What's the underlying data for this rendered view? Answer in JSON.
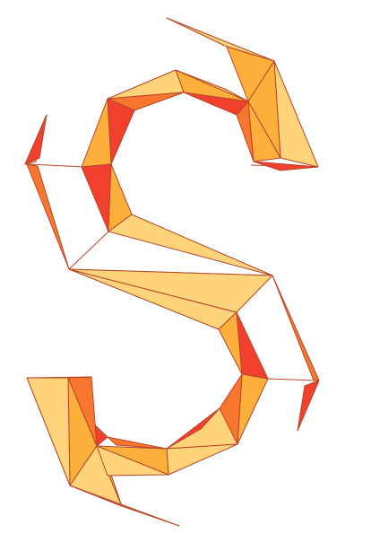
{
  "figure": {
    "subject": "folded-paper-letter-s-icon",
    "palette": {
      "light": "#ffd37a",
      "mid": "#fcb03b",
      "dark": "#f9762f",
      "deep": "#f2402f",
      "stroke": "#b5472a",
      "background": "#ffffff"
    }
  }
}
